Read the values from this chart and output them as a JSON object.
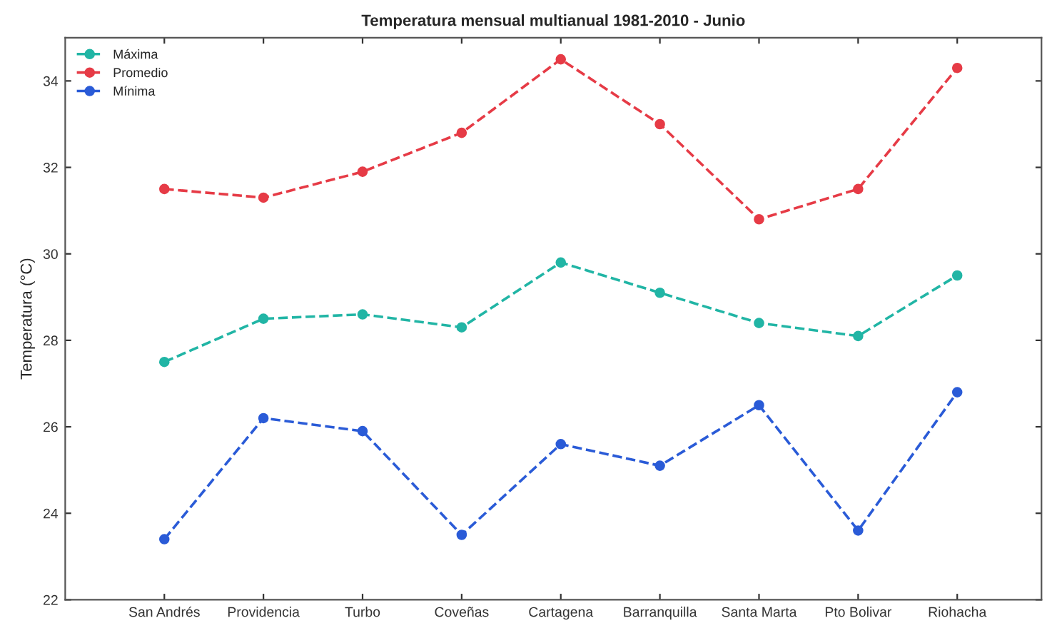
{
  "chart_data": {
    "type": "line",
    "title": "Temperatura mensual multianual 1981-2010 - Junio",
    "ylabel": "Temperatura (°C)",
    "categories": [
      "San Andrés",
      "Providencia",
      "Turbo",
      "Coveñas",
      "Cartagena",
      "Barranquilla",
      "Santa Marta",
      "Pto Bolivar",
      "Riohacha"
    ],
    "series": [
      {
        "name": "Máxima",
        "color": "#21b5a5",
        "values": [
          27.5,
          28.5,
          28.6,
          28.3,
          29.8,
          29.1,
          28.4,
          28.1,
          29.5
        ]
      },
      {
        "name": "Promedio",
        "color": "#e63b46",
        "values": [
          31.5,
          31.3,
          31.9,
          32.8,
          34.5,
          33.0,
          30.8,
          31.5,
          34.3
        ]
      },
      {
        "name": "Mínima",
        "color": "#2a5bd7",
        "values": [
          23.4,
          26.2,
          25.9,
          23.5,
          25.6,
          25.1,
          26.5,
          23.6,
          26.8
        ]
      }
    ],
    "ylim": [
      22,
      35
    ],
    "yticks": [
      22,
      24,
      26,
      28,
      30,
      32,
      34
    ],
    "grid": false,
    "legend": "top left",
    "marker": "circle",
    "line_style": "dashed"
  }
}
